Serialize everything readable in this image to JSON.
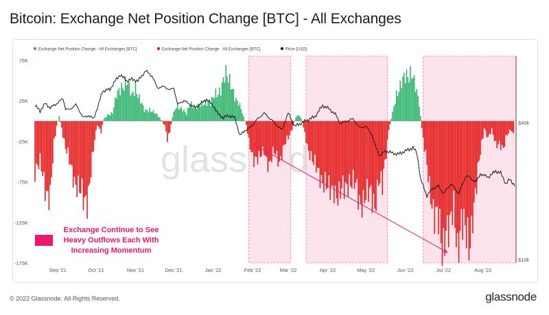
{
  "page": {
    "title": "Bitcoin: Exchange Net Position Change [BTC] - All Exchanges",
    "copyright": "© 2022 Glassnode. All Rights Reserved.",
    "brand": "glassnode",
    "watermark": "glassnode"
  },
  "colors": {
    "positive": "#2db36a",
    "negative": "#e51a1a",
    "price": "#1a1a1a",
    "shade_fill": "#fde3ec",
    "shade_border": "#f07aa0",
    "annotation": "#f0146e",
    "arrow": "#e6186e"
  },
  "annotation": {
    "lines": [
      "Exchange Continue to See",
      "Heavy Outflows Each With",
      "Increasing Momentum"
    ]
  },
  "chart_data": {
    "type": "bar",
    "title": "Bitcoin: Exchange Net Position Change [BTC] - All Exchanges",
    "xlabel": "",
    "ylabel": "",
    "ylim": [
      -175000,
      80000
    ],
    "y_ticks": [
      75000,
      25000,
      -25000,
      -75000,
      -125000,
      -175000
    ],
    "y_tick_labels": [
      "75K",
      "25K",
      "-25K",
      "-75K",
      "-125K",
      "-175K"
    ],
    "y2_scale": "log",
    "y2_ticks": [
      40000,
      10000
    ],
    "y2_tick_labels": [
      "$40k",
      "$10k"
    ],
    "x_start": "2021-08-14",
    "x_end": "2022-08-27",
    "x_ticks": [
      "2021-09-01",
      "2021-10-01",
      "2021-11-01",
      "2021-12-01",
      "2022-01-01",
      "2022-02-01",
      "2022-03-01",
      "2022-04-01",
      "2022-05-01",
      "2022-06-01",
      "2022-07-01",
      "2022-08-01"
    ],
    "x_tick_labels": [
      "Sep '21",
      "Oct '21",
      "Nov '21",
      "Dec '21",
      "Jan '22",
      "Feb '22",
      "Mar '22",
      "Apr '22",
      "May '22",
      "Jun '22",
      "Jul '22",
      "Aug '22"
    ],
    "legend": {
      "position": "top-left",
      "entries": [
        {
          "label": "Exchange Net Position Change - All Exchanges [BTC]",
          "color": "#2db36a"
        },
        {
          "label": "Exchange Net Position Change - All Exchanges [BTC]",
          "color": "#e51a1a"
        },
        {
          "label": "Price [USD]",
          "color": "#1a1a1a"
        }
      ]
    },
    "shaded_regions": [
      {
        "start": "2022-01-29",
        "end": "2022-03-03"
      },
      {
        "start": "2022-03-15",
        "end": "2022-05-18"
      },
      {
        "start": "2022-06-15",
        "end": "2022-08-27"
      }
    ],
    "trend_arrow": {
      "from": [
        "2022-02-01",
        -28000
      ],
      "to": [
        "2022-07-04",
        -162000
      ]
    },
    "net_position_anchors": [
      [
        "2021-08-14",
        -60000
      ],
      [
        "2021-08-18",
        -55000
      ],
      [
        "2021-08-22",
        -80000
      ],
      [
        "2021-08-26",
        -92000
      ],
      [
        "2021-08-29",
        -30000
      ],
      [
        "2021-08-31",
        -6000
      ],
      [
        "2021-09-02",
        5000
      ],
      [
        "2021-09-04",
        -8000
      ],
      [
        "2021-09-07",
        -35000
      ],
      [
        "2021-09-10",
        -50000
      ],
      [
        "2021-09-14",
        -70000
      ],
      [
        "2021-09-18",
        -88000
      ],
      [
        "2021-09-21",
        -100000
      ],
      [
        "2021-09-24",
        -95000
      ],
      [
        "2021-09-27",
        -60000
      ],
      [
        "2021-09-30",
        -25000
      ],
      [
        "2021-10-02",
        -5000
      ],
      [
        "2021-10-05",
        -12000
      ],
      [
        "2021-10-07",
        2000
      ],
      [
        "2021-10-10",
        8000
      ],
      [
        "2021-10-14",
        10000
      ],
      [
        "2021-10-17",
        30000
      ],
      [
        "2021-10-21",
        45000
      ],
      [
        "2021-10-25",
        48000
      ],
      [
        "2021-10-29",
        30000
      ],
      [
        "2021-11-01",
        45000
      ],
      [
        "2021-11-04",
        28000
      ],
      [
        "2021-11-08",
        12000
      ],
      [
        "2021-11-12",
        15000
      ],
      [
        "2021-11-16",
        10000
      ],
      [
        "2021-11-20",
        4000
      ],
      [
        "2021-11-24",
        -6000
      ],
      [
        "2021-11-26",
        -22000
      ],
      [
        "2021-11-28",
        -12000
      ],
      [
        "2021-11-30",
        5000
      ],
      [
        "2021-12-03",
        20000
      ],
      [
        "2021-12-07",
        15000
      ],
      [
        "2021-12-11",
        8000
      ],
      [
        "2021-12-14",
        25000
      ],
      [
        "2021-12-18",
        15000
      ],
      [
        "2021-12-22",
        20000
      ],
      [
        "2021-12-26",
        25000
      ],
      [
        "2021-12-30",
        20000
      ],
      [
        "2022-01-03",
        35000
      ],
      [
        "2022-01-07",
        40000
      ],
      [
        "2022-01-11",
        55000
      ],
      [
        "2022-01-15",
        50000
      ],
      [
        "2022-01-19",
        25000
      ],
      [
        "2022-01-23",
        15000
      ],
      [
        "2022-01-27",
        -5000
      ],
      [
        "2022-01-29",
        -25000
      ],
      [
        "2022-02-02",
        -45000
      ],
      [
        "2022-02-06",
        -50000
      ],
      [
        "2022-02-10",
        -35000
      ],
      [
        "2022-02-14",
        -55000
      ],
      [
        "2022-02-18",
        -40000
      ],
      [
        "2022-02-22",
        -48000
      ],
      [
        "2022-02-26",
        -30000
      ],
      [
        "2022-03-01",
        -22000
      ],
      [
        "2022-03-05",
        -5000
      ],
      [
        "2022-03-08",
        8000
      ],
      [
        "2022-03-11",
        5000
      ],
      [
        "2022-03-14",
        -15000
      ],
      [
        "2022-03-17",
        -35000
      ],
      [
        "2022-03-21",
        -55000
      ],
      [
        "2022-03-25",
        -62000
      ],
      [
        "2022-03-29",
        -75000
      ],
      [
        "2022-04-02",
        -90000
      ],
      [
        "2022-04-06",
        -80000
      ],
      [
        "2022-04-10",
        -95000
      ],
      [
        "2022-04-14",
        -85000
      ],
      [
        "2022-04-18",
        -70000
      ],
      [
        "2022-04-22",
        -80000
      ],
      [
        "2022-04-26",
        -100000
      ],
      [
        "2022-04-30",
        -90000
      ],
      [
        "2022-05-04",
        -95000
      ],
      [
        "2022-05-08",
        -100000
      ],
      [
        "2022-05-11",
        -70000
      ],
      [
        "2022-05-14",
        -85000
      ],
      [
        "2022-05-17",
        -40000
      ],
      [
        "2022-05-19",
        -10000
      ],
      [
        "2022-05-22",
        10000
      ],
      [
        "2022-05-25",
        35000
      ],
      [
        "2022-05-29",
        45000
      ],
      [
        "2022-06-02",
        55000
      ],
      [
        "2022-06-06",
        65000
      ],
      [
        "2022-06-09",
        40000
      ],
      [
        "2022-06-12",
        20000
      ],
      [
        "2022-06-15",
        -25000
      ],
      [
        "2022-06-18",
        -55000
      ],
      [
        "2022-06-21",
        -85000
      ],
      [
        "2022-06-24",
        -120000
      ],
      [
        "2022-06-27",
        -130000
      ],
      [
        "2022-06-30",
        -155000
      ],
      [
        "2022-07-03",
        -125000
      ],
      [
        "2022-07-06",
        -140000
      ],
      [
        "2022-07-09",
        -110000
      ],
      [
        "2022-07-12",
        -150000
      ],
      [
        "2022-07-15",
        -120000
      ],
      [
        "2022-07-18",
        -145000
      ],
      [
        "2022-07-21",
        -155000
      ],
      [
        "2022-07-24",
        -110000
      ],
      [
        "2022-07-27",
        -80000
      ],
      [
        "2022-07-30",
        -40000
      ],
      [
        "2022-08-02",
        -8000
      ],
      [
        "2022-08-05",
        -20000
      ],
      [
        "2022-08-08",
        -12000
      ],
      [
        "2022-08-11",
        -30000
      ],
      [
        "2022-08-14",
        -25000
      ],
      [
        "2022-08-17",
        -35000
      ],
      [
        "2022-08-20",
        -18000
      ],
      [
        "2022-08-23",
        -10000
      ],
      [
        "2022-08-25",
        -15000
      ]
    ],
    "price_usd": [
      [
        "2021-08-14",
        47500
      ],
      [
        "2021-08-18",
        45000
      ],
      [
        "2021-08-22",
        48500
      ],
      [
        "2021-08-26",
        46500
      ],
      [
        "2021-08-30",
        48000
      ],
      [
        "2021-09-05",
        51000
      ],
      [
        "2021-09-07",
        46000
      ],
      [
        "2021-09-10",
        45500
      ],
      [
        "2021-09-15",
        48000
      ],
      [
        "2021-09-21",
        42000
      ],
      [
        "2021-09-25",
        43000
      ],
      [
        "2021-09-29",
        41500
      ],
      [
        "2021-10-03",
        48000
      ],
      [
        "2021-10-06",
        55000
      ],
      [
        "2021-10-12",
        56000
      ],
      [
        "2021-10-16",
        61000
      ],
      [
        "2021-10-20",
        65000
      ],
      [
        "2021-10-25",
        61000
      ],
      [
        "2021-10-29",
        62000
      ],
      [
        "2021-11-03",
        61000
      ],
      [
        "2021-11-09",
        67500
      ],
      [
        "2021-11-14",
        64000
      ],
      [
        "2021-11-18",
        57000
      ],
      [
        "2021-11-24",
        57500
      ],
      [
        "2021-11-28",
        55500
      ],
      [
        "2021-12-01",
        57000
      ],
      [
        "2021-12-04",
        48000
      ],
      [
        "2021-12-09",
        50000
      ],
      [
        "2021-12-14",
        48000
      ],
      [
        "2021-12-18",
        46500
      ],
      [
        "2021-12-22",
        48500
      ],
      [
        "2021-12-27",
        50500
      ],
      [
        "2022-01-01",
        47500
      ],
      [
        "2022-01-05",
        43500
      ],
      [
        "2022-01-09",
        42000
      ],
      [
        "2022-01-13",
        43000
      ],
      [
        "2022-01-18",
        42000
      ],
      [
        "2022-01-22",
        35000
      ],
      [
        "2022-01-26",
        37000
      ],
      [
        "2022-01-30",
        38000
      ],
      [
        "2022-02-05",
        41500
      ],
      [
        "2022-02-10",
        44000
      ],
      [
        "2022-02-14",
        42000
      ],
      [
        "2022-02-18",
        40000
      ],
      [
        "2022-02-24",
        37000
      ],
      [
        "2022-03-01",
        44000
      ],
      [
        "2022-03-06",
        38500
      ],
      [
        "2022-03-10",
        39500
      ],
      [
        "2022-03-16",
        41000
      ],
      [
        "2022-03-22",
        42500
      ],
      [
        "2022-03-28",
        47500
      ],
      [
        "2022-04-02",
        46000
      ],
      [
        "2022-04-07",
        43500
      ],
      [
        "2022-04-11",
        39500
      ],
      [
        "2022-04-15",
        40500
      ],
      [
        "2022-04-21",
        41500
      ],
      [
        "2022-04-26",
        38000
      ],
      [
        "2022-05-01",
        38500
      ],
      [
        "2022-05-05",
        36000
      ],
      [
        "2022-05-09",
        31000
      ],
      [
        "2022-05-12",
        28500
      ],
      [
        "2022-05-16",
        30000
      ],
      [
        "2022-05-21",
        29500
      ],
      [
        "2022-05-26",
        29000
      ],
      [
        "2022-06-01",
        30000
      ],
      [
        "2022-06-07",
        31000
      ],
      [
        "2022-06-10",
        29500
      ],
      [
        "2022-06-13",
        22500
      ],
      [
        "2022-06-18",
        19000
      ],
      [
        "2022-06-22",
        20500
      ],
      [
        "2022-06-27",
        21000
      ],
      [
        "2022-07-01",
        19500
      ],
      [
        "2022-07-07",
        21500
      ],
      [
        "2022-07-13",
        19500
      ],
      [
        "2022-07-19",
        23500
      ],
      [
        "2022-07-23",
        22500
      ],
      [
        "2022-07-27",
        22000
      ],
      [
        "2022-07-30",
        23800
      ],
      [
        "2022-08-05",
        23000
      ],
      [
        "2022-08-11",
        24500
      ],
      [
        "2022-08-15",
        24000
      ],
      [
        "2022-08-19",
        21500
      ],
      [
        "2022-08-22",
        22500
      ],
      [
        "2022-08-26",
        21200
      ]
    ]
  }
}
